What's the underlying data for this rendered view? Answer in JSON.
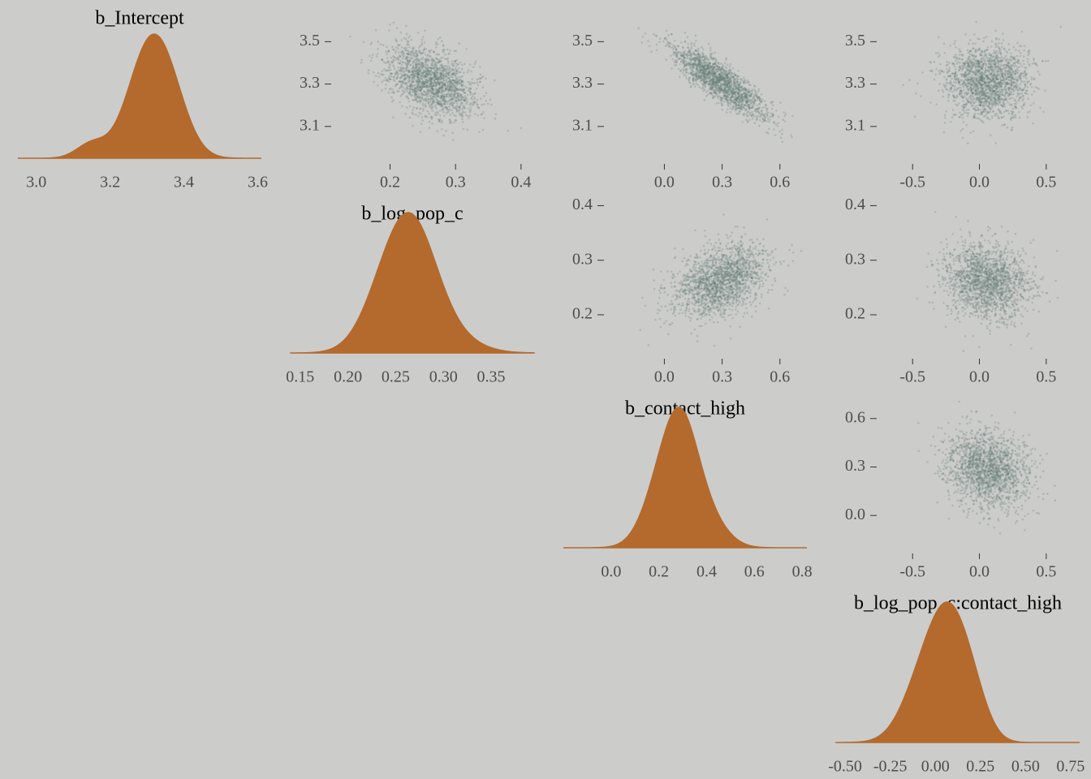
{
  "chart_data": {
    "type": "pairs",
    "background": "#cccccb",
    "colors": {
      "density_fill": "#b36a2c",
      "points": "#647f76",
      "tick_text": "#4d4d4d",
      "title_text": "#000000"
    },
    "parameters": [
      {
        "title": "b_Intercept",
        "mean": 3.31,
        "sd": 0.085,
        "density": {
          "xlim": [
            2.95,
            3.61
          ],
          "tick_values": [
            3.0,
            3.2,
            3.4,
            3.6
          ],
          "tick_labels": [
            "3.0",
            "3.2",
            "3.4",
            "3.6"
          ],
          "peaks": [
            [
              3.29,
              0.6,
              0.055
            ],
            [
              3.35,
              0.58,
              0.055
            ],
            [
              3.15,
              0.12,
              0.04
            ]
          ]
        },
        "scatter_axis": {
          "lim": [
            2.95,
            3.62
          ],
          "tick_values": [
            3.1,
            3.3,
            3.5
          ],
          "tick_labels": [
            "3.1",
            "3.3",
            "3.5"
          ]
        }
      },
      {
        "title": "b_log_pop_c",
        "mean": 0.262,
        "sd": 0.034,
        "density": {
          "xlim": [
            0.14,
            0.395
          ],
          "tick_values": [
            0.15,
            0.2,
            0.25,
            0.3,
            0.35
          ],
          "tick_labels": [
            "0.15",
            "0.20",
            "0.25",
            "0.30",
            "0.35"
          ],
          "peaks": [
            [
              0.245,
              0.55,
              0.026
            ],
            [
              0.272,
              0.6,
              0.024
            ],
            [
              0.3,
              0.15,
              0.03
            ]
          ]
        },
        "scatter_axis": {
          "lim": [
            0.13,
            0.42
          ],
          "tick_values": [
            0.2,
            0.3,
            0.4
          ],
          "tick_labels": [
            "0.2",
            "0.3",
            "0.4"
          ],
          "xlim": [
            0.12,
            0.42
          ]
        }
      },
      {
        "title": "b_contact_high",
        "mean": 0.29,
        "sd": 0.12,
        "density": {
          "xlim": [
            -0.2,
            0.82
          ],
          "tick_values": [
            0.0,
            0.2,
            0.4,
            0.6,
            0.8
          ],
          "tick_labels": [
            "0.0",
            "0.2",
            "0.4",
            "0.6",
            "0.8"
          ],
          "peaks": [
            [
              0.22,
              0.45,
              0.08
            ],
            [
              0.3,
              0.6,
              0.07
            ],
            [
              0.4,
              0.2,
              0.08
            ]
          ]
        },
        "scatter_axis": {
          "lim": [
            -0.2,
            0.78
          ],
          "tick_values": [
            0.0,
            0.3,
            0.6
          ],
          "tick_labels": [
            "0.0",
            "0.3",
            "0.6"
          ],
          "xlim": [
            -0.28,
            0.74
          ]
        }
      },
      {
        "title": "b_log_pop_c:contact_high",
        "mean": 0.06,
        "sd": 0.16,
        "density": {
          "xlim": [
            -0.55,
            0.8
          ],
          "tick_values": [
            -0.5,
            -0.25,
            0.0,
            0.25,
            0.5,
            0.75
          ],
          "tick_labels": [
            "-0.50",
            "-0.25",
            "0.00",
            "0.25",
            "0.50",
            "0.75"
          ],
          "peaks": [
            [
              -0.05,
              0.5,
              0.12
            ],
            [
              0.08,
              0.6,
              0.1
            ],
            [
              0.2,
              0.3,
              0.09
            ]
          ]
        },
        "scatter_axis": {
          "lim": [
            -0.72,
            0.75
          ],
          "tick_values": [
            -0.5,
            0.0,
            0.5
          ],
          "tick_labels": [
            "-0.5",
            "0.0",
            "0.5"
          ]
        }
      }
    ],
    "correlations": [
      [
        1.0,
        -0.45,
        -0.85,
        0.0
      ],
      [
        -0.45,
        1.0,
        0.35,
        -0.15
      ],
      [
        -0.85,
        0.35,
        1.0,
        -0.2
      ],
      [
        0.0,
        -0.15,
        -0.2,
        1.0
      ]
    ],
    "points_per_panel": 1800,
    "grid": false,
    "legend": "none"
  }
}
